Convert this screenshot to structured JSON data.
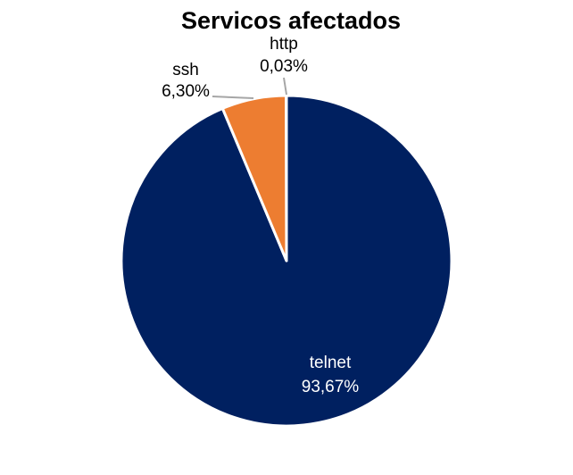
{
  "chart_data": {
    "type": "pie",
    "title": "Servicos afectados",
    "slices": [
      {
        "label": "telnet",
        "value": 93.67,
        "value_label": "93,67%",
        "color": "#002060",
        "label_color": "#ffffff"
      },
      {
        "label": "ssh",
        "value": 6.3,
        "value_label": "6,30%",
        "color": "#ED7D31",
        "label_color": "#000000"
      },
      {
        "label": "http",
        "value": 0.03,
        "value_label": "0,03%",
        "color": "#A5A5A5",
        "label_color": "#000000"
      }
    ],
    "start_angle": "12 o'clock",
    "direction": "clockwise",
    "legend": "none",
    "leader_line_color": "#A6A6A6"
  }
}
